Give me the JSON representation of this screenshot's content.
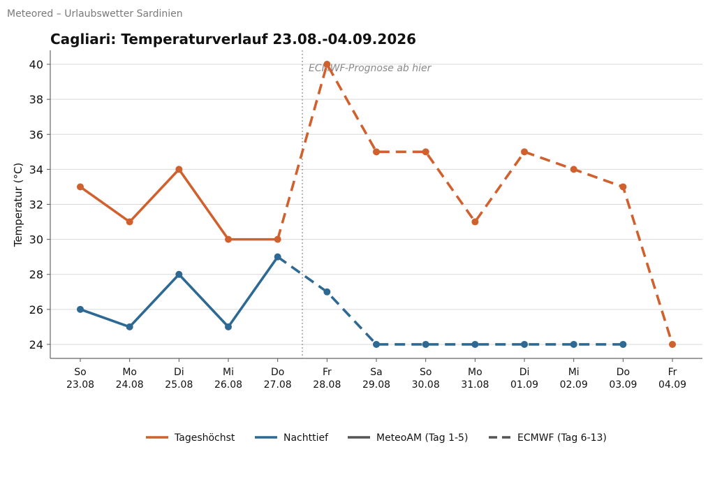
{
  "source_label": "Meteored – Urlaubswetter Sardinien",
  "chart_data": {
    "type": "line",
    "title": "Cagliari: Temperaturverlauf 23.08.-04.09.2026",
    "xlabel": "",
    "ylabel": "Temperatur (°C)",
    "ylim": [
      23.2,
      40.8
    ],
    "yticks": [
      24,
      26,
      28,
      30,
      32,
      34,
      36,
      38,
      40
    ],
    "grid": "horizontal",
    "legend_placement": "bottom-center",
    "categories": [
      [
        "So",
        "23.08"
      ],
      [
        "Mo",
        "24.08"
      ],
      [
        "Di",
        "25.08"
      ],
      [
        "Mi",
        "26.08"
      ],
      [
        "Do",
        "27.08"
      ],
      [
        "Fr",
        "28.08"
      ],
      [
        "Sa",
        "29.08"
      ],
      [
        "So",
        "30.08"
      ],
      [
        "Mo",
        "31.08"
      ],
      [
        "Di",
        "01.09"
      ],
      [
        "Mi",
        "02.09"
      ],
      [
        "Do",
        "03.09"
      ],
      [
        "Fr",
        "04.09"
      ]
    ],
    "series": [
      {
        "name": "Tageshöchst",
        "color": "#d0612e",
        "values": [
          33,
          31,
          34,
          30,
          30,
          40,
          35,
          35,
          31,
          35,
          34,
          33,
          24
        ]
      },
      {
        "name": "Nachttief",
        "color": "#2e6994",
        "values": [
          26,
          25,
          28,
          25,
          29,
          27,
          24,
          24,
          24,
          24,
          24,
          24,
          null
        ]
      }
    ],
    "segment_split_index": 4,
    "forecast_divider_after_index": 4,
    "annotation": "ECMWF-Prognose ab hier",
    "legend": [
      {
        "label": "Tageshöchst",
        "style": "solid",
        "color": "#d0612e"
      },
      {
        "label": "Nachttief",
        "style": "solid",
        "color": "#2e6994"
      },
      {
        "label": "MeteoAM (Tag 1-5)",
        "style": "solid",
        "color": "#555555"
      },
      {
        "label": "ECMWF (Tag 6-13)",
        "style": "dashed",
        "color": "#555555"
      }
    ]
  }
}
